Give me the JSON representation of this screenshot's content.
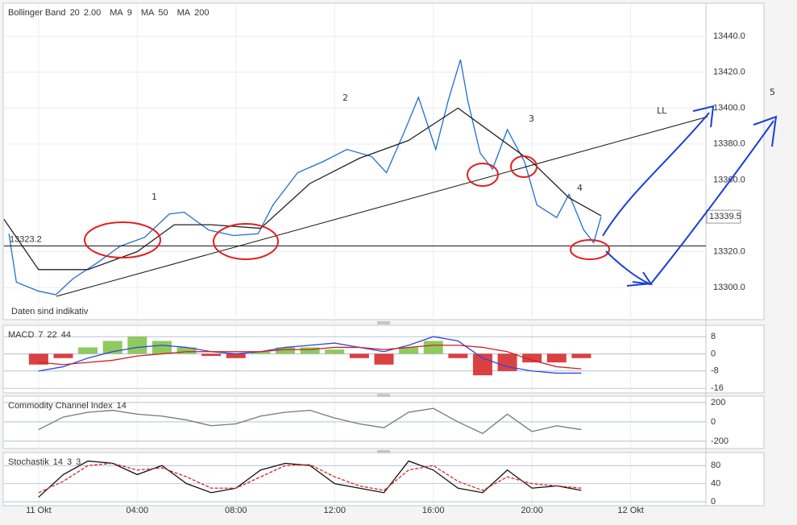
{
  "chart_data": [
    {
      "type": "line",
      "indicators": [
        {
          "name": "Bollinger Band",
          "params": [
            20,
            "2.00"
          ],
          "color": "#d2691e"
        },
        {
          "name": "MA",
          "params": [
            9
          ],
          "color": "#66aa00"
        },
        {
          "name": "MA",
          "params": [
            50
          ],
          "color": "#888888"
        },
        {
          "name": "MA",
          "params": [
            200
          ],
          "color": "#cc0000"
        }
      ],
      "note": "Daten sind indikativ",
      "ylim": [
        13283,
        13458
      ],
      "yticks": [
        {
          "value": 13440,
          "label": "13440.0"
        },
        {
          "value": 13420,
          "label": "13420.0"
        },
        {
          "value": 13400,
          "label": "13400.0"
        },
        {
          "value": 13380,
          "label": "13380.0"
        },
        {
          "value": 13360,
          "label": "13360.0"
        },
        {
          "value": 13320,
          "label": "13320.0"
        },
        {
          "value": 13300,
          "label": "13300.0"
        }
      ],
      "xlim": [
        -1.4,
        27.05
      ],
      "xticks": [
        {
          "value": 0,
          "label": "11 Okt"
        },
        {
          "value": 4,
          "label": "04:00"
        },
        {
          "value": 8,
          "label": "08:00"
        },
        {
          "value": 12,
          "label": "12:00"
        },
        {
          "value": 16,
          "label": "16:00"
        },
        {
          "value": 20,
          "label": "20:00"
        },
        {
          "value": 24,
          "label": "12 Okt"
        }
      ],
      "grid": true,
      "hline": 13323.2,
      "last_price": 13339.5,
      "series": [
        {
          "type": "line",
          "color": "#1e6fd0",
          "x": [
            -1.2,
            -0.9,
            0,
            0.7,
            1.4,
            2.4,
            3.3,
            4.3,
            5.3,
            5.9,
            6.9,
            7.9,
            8.9,
            9.5,
            10.5,
            11.5,
            12.5,
            13.5,
            14.1,
            14.8,
            15.4,
            16.1,
            16.6,
            17.1,
            17.4,
            17.9,
            18.4,
            19,
            19.7,
            20.2,
            21,
            21.5,
            22.1,
            22.5,
            22.8
          ],
          "values": [
            13330,
            13303,
            13298,
            13296,
            13305,
            13314,
            13323,
            13328,
            13341,
            13342,
            13332,
            13329,
            13330,
            13346,
            13364,
            13370,
            13377,
            13373,
            13364,
            13386,
            13406,
            13377,
            13404,
            13427,
            13404,
            13375,
            13366,
            13388,
            13370,
            13346,
            13339,
            13352,
            13332,
            13325,
            13339.5
          ]
        },
        {
          "type": "line",
          "color": "#222222",
          "x": [
            -1.4,
            0,
            2,
            4,
            5.5,
            7,
            9,
            11,
            13,
            15,
            17,
            18.5,
            20,
            21.5,
            22.8
          ],
          "values": [
            13338,
            13310,
            13310,
            13320,
            13335,
            13335,
            13333,
            13358,
            13372,
            13382,
            13400,
            13385,
            13370,
            13350,
            13340
          ]
        }
      ],
      "annotations": [
        {
          "text": "1",
          "color": "#1a3fd8"
        },
        {
          "text": "2",
          "color": "#1a3fd8"
        },
        {
          "text": "3",
          "color": "#1a3fd8"
        },
        {
          "text": "4",
          "color": "#1a3fd8"
        },
        {
          "text": "LL",
          "color": "#e02020"
        },
        {
          "text": "5",
          "color": "#1a3fd8"
        }
      ]
    },
    {
      "type": "line",
      "name": "MACD",
      "params": [
        7,
        22,
        44
      ],
      "param_color": "#cc0000",
      "ylim": [
        -18.2,
        12.9
      ],
      "yticks": [
        8,
        0,
        -8,
        -16
      ],
      "x": [
        0,
        1,
        2,
        3,
        4,
        5,
        6,
        7,
        8,
        9,
        10,
        11,
        12,
        13,
        14,
        15,
        16,
        17,
        18,
        19,
        20,
        21,
        22
      ],
      "series": [
        {
          "type": "bar",
          "color_up": "#7ac142",
          "color_down": "#d62020",
          "values": [
            -5,
            -2,
            3,
            6,
            8,
            6,
            3,
            -1,
            -2,
            1,
            3,
            3,
            2,
            -2,
            -5,
            3,
            6,
            -2,
            -10,
            -8,
            -4,
            -4,
            -2
          ]
        },
        {
          "type": "line",
          "color": "#3344dd",
          "values": [
            -8,
            -6,
            -2,
            1,
            3,
            4,
            3,
            1,
            0,
            1,
            3,
            4,
            5,
            3,
            1,
            4,
            8,
            6,
            -2,
            -6,
            -8,
            -9,
            -9
          ]
        },
        {
          "type": "line",
          "color": "#cc2222",
          "values": [
            -4,
            -5,
            -4,
            -3,
            -1,
            0,
            1,
            1,
            1,
            1,
            2,
            2,
            3,
            3,
            2,
            3,
            4,
            4,
            3,
            1,
            -3,
            -6,
            -7
          ]
        }
      ]
    },
    {
      "type": "line",
      "name": "Commodity Channel Index",
      "params": [
        14
      ],
      "param_color": "#333333",
      "ylim": [
        -267,
        258
      ],
      "yticks": [
        200,
        0,
        -200
      ],
      "x": [
        0,
        1,
        2,
        3,
        4,
        5,
        6,
        7,
        8,
        9,
        10,
        11,
        12,
        13,
        14,
        15,
        16,
        17,
        18,
        19,
        20,
        21,
        22
      ],
      "series": [
        {
          "type": "line",
          "color": "#777777",
          "values": [
            -80,
            50,
            100,
            120,
            80,
            60,
            20,
            -40,
            -20,
            60,
            100,
            120,
            40,
            -20,
            -60,
            100,
            140,
            0,
            -120,
            80,
            -100,
            -40,
            -80
          ]
        }
      ]
    },
    {
      "type": "line",
      "name": "Stochastik",
      "params": [
        14,
        3,
        3
      ],
      "param_color": "#333333",
      "ylim": [
        -7,
        107
      ],
      "yticks": [
        80,
        40,
        0
      ],
      "x": [
        0,
        1,
        2,
        3,
        4,
        5,
        6,
        7,
        8,
        9,
        10,
        11,
        12,
        13,
        14,
        15,
        16,
        17,
        18,
        19,
        20,
        21,
        22
      ],
      "series": [
        {
          "type": "line",
          "color": "#111111",
          "values": [
            10,
            60,
            90,
            85,
            60,
            80,
            40,
            20,
            30,
            70,
            85,
            80,
            40,
            30,
            20,
            90,
            70,
            30,
            20,
            70,
            30,
            35,
            25
          ]
        },
        {
          "type": "line",
          "color": "#dd2222",
          "dash": true,
          "values": [
            20,
            45,
            80,
            85,
            70,
            75,
            55,
            30,
            30,
            55,
            80,
            82,
            55,
            35,
            25,
            70,
            80,
            45,
            25,
            55,
            40,
            35,
            30
          ]
        }
      ]
    }
  ]
}
